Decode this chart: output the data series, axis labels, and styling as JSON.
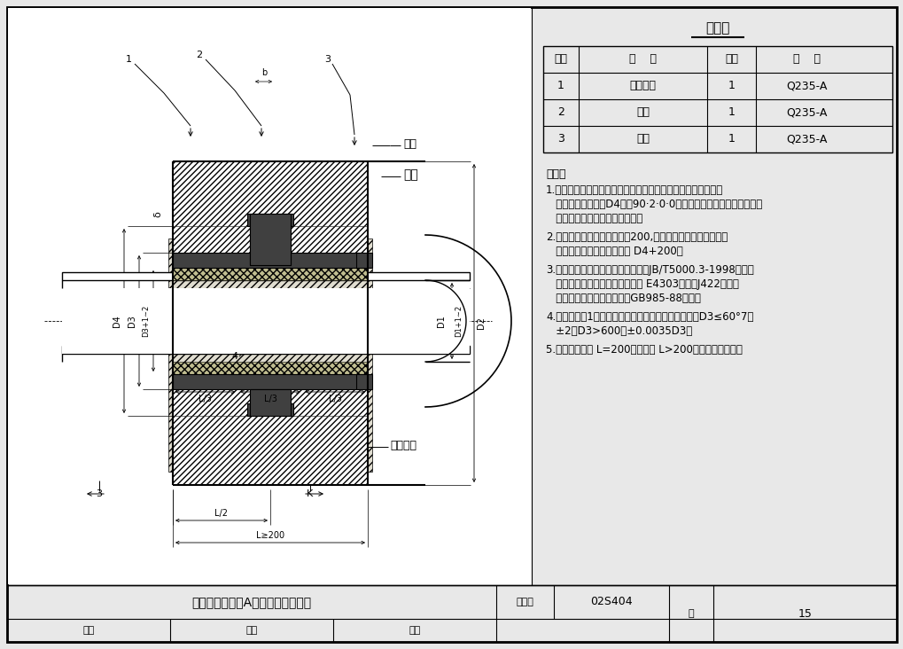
{
  "bg_color": "#e8e8e8",
  "white": "#ffffff",
  "black": "#000000",
  "hatch_color": "#000000",
  "steel_color": "#555555",
  "filler_color": "#b0b090",
  "title": "刚性防水套管（A型）安装图（一）",
  "fig_number": "02S404",
  "page": "15",
  "table_title": "材料表",
  "table_headers": [
    "序号",
    "名    称",
    "数量",
    "材    料"
  ],
  "table_rows": [
    [
      "1",
      "钒制套管",
      "1",
      "Q235-A"
    ],
    [
      "2",
      "翼环",
      "1",
      "Q235-A"
    ],
    [
      "3",
      "挡圈",
      "1",
      "Q235-A"
    ]
  ],
  "notes_title": "说明：",
  "note1_lines": [
    "1.套管穿墙处如遇非混凝土墙壁时，应改用混凝土墙壁，其浇注",
    "   围应比翼环直径（D4）大90·2·0·0，而且必须将套管一次浇固于墙",
    "   内．套管内的填料应紧密捣实．"
  ],
  "note2_lines": [
    "2.穿管处混凝土墙厅应不小于200,否则应使墙壁一边或两边加",
    "   厅．加厅部分的直径至少为 D4+200．"
  ],
  "note3_lines": [
    "3.焊接结构尺寸公差与形位公差按照JB/T5000.3-1998执行．",
    "   焊接采用手工电弧焊，焊条型号 E4303，牌号J422。焊缝",
    "   坡口的基本形式与尺寸按照GB985-88执行．"
  ],
  "note4_lines": [
    "4.当套管（件1）采用卷制成型时，周长允许偏差为：D3≤60°7，",
    "   ±2，D3>600，±0.0035D3．"
  ],
  "note5_lines": [
    "5.套管的重量以 L=200计算，当 L>200时，应另行计算．"
  ],
  "footer_title": "刚性防水套管（A型）安装图（一）",
  "footer_atlas_label": "图集号",
  "footer_atlas_val": "02S404",
  "footer_page_label": "页",
  "footer_page_val": "15",
  "footer_audit_label": "审核",
  "footer_check_label": "校对",
  "footer_design_label": "设计"
}
